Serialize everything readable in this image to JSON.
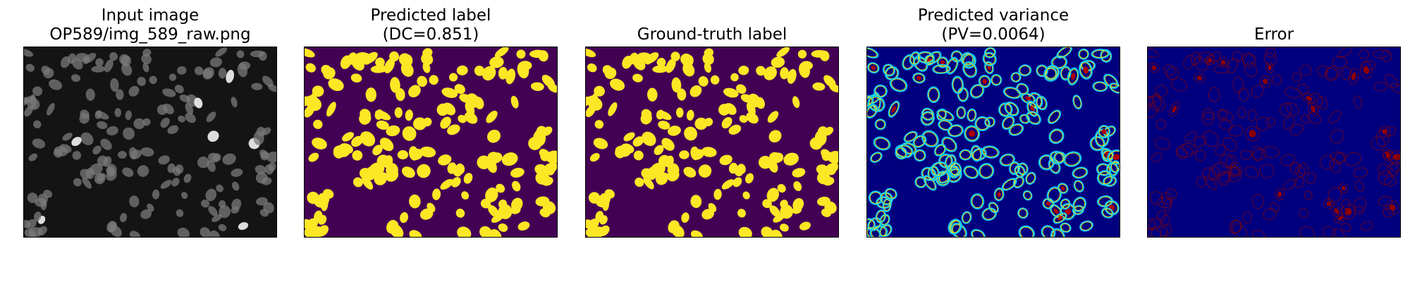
{
  "panels": [
    {
      "id": "input",
      "title_lines": [
        "Input image",
        "OP589/img_589_raw.png"
      ],
      "colormap": "gray"
    },
    {
      "id": "pred",
      "title_lines": [
        "Predicted label",
        "(DC=0.851)"
      ],
      "colormap": "viridis",
      "metrics": {
        "DC": 0.851
      }
    },
    {
      "id": "gt",
      "title_lines": [
        "",
        "Ground-truth label"
      ],
      "colormap": "viridis"
    },
    {
      "id": "var",
      "title_lines": [
        "Predicted variance",
        "(PV=0.0064)"
      ],
      "colormap": "jet",
      "metrics": {
        "PV": 0.0064
      }
    },
    {
      "id": "err",
      "title_lines": [
        "",
        "Error"
      ],
      "colormap": "jet"
    }
  ],
  "colors": {
    "gray_bg": "#141414",
    "gray_cell": "#7a7a7a",
    "gray_bright": "#e8e8e8",
    "viridis_bg": "#440154",
    "viridis_fg": "#fde725",
    "jet_bg": "#00007f",
    "jet_cyan": "#00c8ff",
    "jet_yellow": "#ffe600",
    "jet_red": "#b00000",
    "err_red": "#8c0000"
  }
}
